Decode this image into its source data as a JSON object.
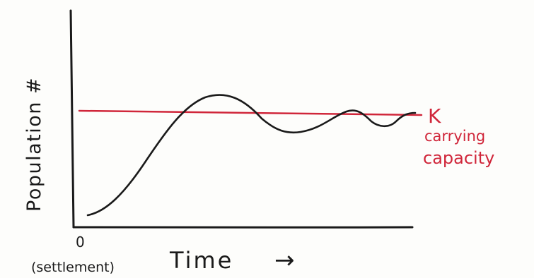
{
  "figure": {
    "y_axis_label": "Population #",
    "x_axis_label": "Time",
    "x_axis_arrow": "→",
    "origin_label": "0",
    "origin_sublabel": "(settlement)",
    "k_label": "K",
    "k_description_line1": "carrying",
    "k_description_line2": "capacity"
  },
  "colors": {
    "ink": "#1a1a1a",
    "k_line": "#d0263a",
    "background": "#fdfdfb"
  }
}
